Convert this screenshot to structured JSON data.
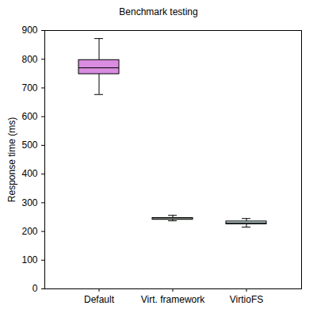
{
  "chart_data": {
    "type": "box",
    "title": "Benchmark testing",
    "y_label": "Response time (ms)",
    "categories": [
      "Default",
      "Virt. framework",
      "VirtioFS"
    ],
    "boxes": [
      {
        "min": 677,
        "q1": 748,
        "median": 770,
        "q3": 797,
        "max": 872
      },
      {
        "min": 237,
        "q1": 241,
        "median": 244,
        "q3": 247,
        "max": 256
      },
      {
        "min": 215,
        "q1": 225,
        "median": 230,
        "q3": 235,
        "max": 245
      }
    ],
    "colors": [
      "#d98ce0",
      "#d8ecd8",
      "#d6ecf0"
    ],
    "ylim": [
      0,
      900
    ],
    "yticks": [
      0,
      100,
      200,
      300,
      400,
      500,
      600,
      700,
      800,
      900
    ],
    "grid": false
  }
}
